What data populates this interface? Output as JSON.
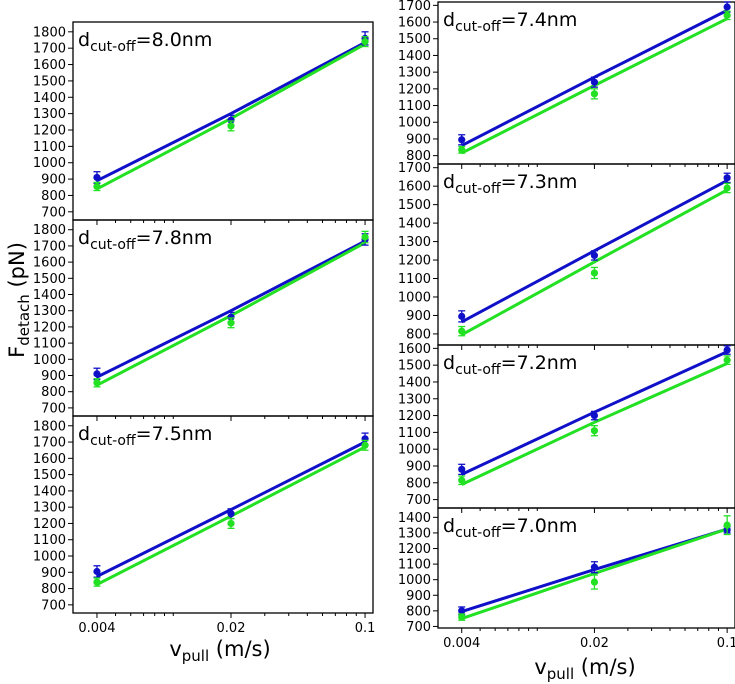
{
  "figure": {
    "ylabel_main": "F",
    "ylabel_sub": "detach",
    "ylabel_unit": " (pN)",
    "xlabel_main": "v",
    "xlabel_sub": "pull",
    "xlabel_unit": " (m/s)"
  },
  "chart_data": [
    {
      "type": "scatter",
      "label_main": "d",
      "label_sub": "cut-off",
      "label_value": "=8.0nm",
      "x": [
        0.004,
        0.02,
        0.1
      ],
      "xscale": "log",
      "xlim": [
        0.003,
        0.11
      ],
      "ylim": [
        650,
        1860
      ],
      "yticks": [
        700,
        800,
        900,
        1000,
        1100,
        1200,
        1300,
        1400,
        1500,
        1600,
        1700,
        1800
      ],
      "xticklabels_shown": false,
      "series": [
        {
          "color": "#1010c8",
          "points": [
            910,
            1260,
            1760
          ],
          "errors": [
            35,
            30,
            40
          ],
          "fit": [
            890,
            1300,
            1735
          ]
        },
        {
          "color": "#22e022",
          "points": [
            855,
            1225,
            1740
          ],
          "errors": [
            25,
            30,
            30
          ],
          "fit": [
            840,
            1270,
            1725
          ]
        }
      ]
    },
    {
      "type": "scatter",
      "label_main": "d",
      "label_sub": "cut-off",
      "label_value": "=7.8nm",
      "x": [
        0.004,
        0.02,
        0.1
      ],
      "xscale": "log",
      "xlim": [
        0.003,
        0.11
      ],
      "ylim": [
        650,
        1860
      ],
      "yticks": [
        700,
        800,
        900,
        1000,
        1100,
        1200,
        1300,
        1400,
        1500,
        1600,
        1700,
        1800
      ],
      "xticklabels_shown": false,
      "series": [
        {
          "color": "#1010c8",
          "points": [
            910,
            1260,
            1740
          ],
          "errors": [
            35,
            30,
            35
          ],
          "fit": [
            890,
            1300,
            1730
          ]
        },
        {
          "color": "#22e022",
          "points": [
            855,
            1225,
            1755
          ],
          "errors": [
            25,
            30,
            35
          ],
          "fit": [
            840,
            1270,
            1720
          ]
        }
      ]
    },
    {
      "type": "scatter",
      "label_main": "d",
      "label_sub": "cut-off",
      "label_value": "=7.5nm",
      "x": [
        0.004,
        0.02,
        0.1
      ],
      "xscale": "log",
      "xlim": [
        0.003,
        0.11
      ],
      "ylim": [
        650,
        1860
      ],
      "yticks": [
        700,
        800,
        900,
        1000,
        1100,
        1200,
        1300,
        1400,
        1500,
        1600,
        1700,
        1800
      ],
      "xticks": [
        0.004,
        0.02,
        0.1
      ],
      "xticklabels": [
        "0.004",
        "0.02",
        "0.1"
      ],
      "xticklabels_shown": true,
      "series": [
        {
          "color": "#1010c8",
          "points": [
            905,
            1260,
            1720
          ],
          "errors": [
            35,
            30,
            35
          ],
          "fit": [
            875,
            1285,
            1700
          ]
        },
        {
          "color": "#22e022",
          "points": [
            840,
            1200,
            1680
          ],
          "errors": [
            25,
            30,
            30
          ],
          "fit": [
            825,
            1245,
            1670
          ]
        }
      ]
    },
    {
      "type": "scatter",
      "label_main": "d",
      "label_sub": "cut-off",
      "label_value": "=7.4nm",
      "x": [
        0.004,
        0.02,
        0.1
      ],
      "xscale": "log",
      "xlim": [
        0.003,
        0.11
      ],
      "ylim": [
        750,
        1720
      ],
      "yticks": [
        800,
        900,
        1000,
        1100,
        1200,
        1300,
        1400,
        1500,
        1600,
        1700
      ],
      "xticklabels_shown": false,
      "series": [
        {
          "color": "#1010c8",
          "points": [
            895,
            1240,
            1690
          ],
          "errors": [
            30,
            30,
            30
          ],
          "fit": [
            860,
            1270,
            1670
          ]
        },
        {
          "color": "#22e022",
          "points": [
            835,
            1170,
            1640
          ],
          "errors": [
            20,
            30,
            25
          ],
          "fit": [
            815,
            1220,
            1620
          ]
        }
      ]
    },
    {
      "type": "scatter",
      "label_main": "d",
      "label_sub": "cut-off",
      "label_value": "=7.3nm",
      "x": [
        0.004,
        0.02,
        0.1
      ],
      "xscale": "log",
      "xlim": [
        0.003,
        0.11
      ],
      "ylim": [
        740,
        1720
      ],
      "yticks": [
        800,
        900,
        1000,
        1100,
        1200,
        1300,
        1400,
        1500,
        1600,
        1700
      ],
      "xticklabels_shown": false,
      "series": [
        {
          "color": "#1010c8",
          "points": [
            895,
            1225,
            1645
          ],
          "errors": [
            30,
            25,
            25
          ],
          "fit": [
            865,
            1250,
            1630
          ]
        },
        {
          "color": "#22e022",
          "points": [
            815,
            1130,
            1590
          ],
          "errors": [
            25,
            30,
            25
          ],
          "fit": [
            795,
            1190,
            1580
          ]
        }
      ]
    },
    {
      "type": "scatter",
      "label_main": "d",
      "label_sub": "cut-off",
      "label_value": "=7.2nm",
      "x": [
        0.004,
        0.02,
        0.1
      ],
      "xscale": "log",
      "xlim": [
        0.003,
        0.11
      ],
      "ylim": [
        650,
        1620
      ],
      "yticks": [
        700,
        800,
        900,
        1000,
        1100,
        1200,
        1300,
        1400,
        1500,
        1600
      ],
      "xticklabels_shown": false,
      "series": [
        {
          "color": "#1010c8",
          "points": [
            880,
            1200,
            1590
          ],
          "errors": [
            30,
            25,
            25
          ],
          "fit": [
            850,
            1220,
            1580
          ]
        },
        {
          "color": "#22e022",
          "points": [
            815,
            1110,
            1530
          ],
          "errors": [
            25,
            30,
            25
          ],
          "fit": [
            790,
            1160,
            1510
          ]
        }
      ]
    },
    {
      "type": "scatter",
      "label_main": "d",
      "label_sub": "cut-off",
      "label_value": "=7.0nm",
      "x": [
        0.004,
        0.02,
        0.1
      ],
      "xscale": "log",
      "xlim": [
        0.003,
        0.11
      ],
      "ylim": [
        690,
        1460
      ],
      "yticks": [
        700,
        800,
        900,
        1000,
        1100,
        1200,
        1300,
        1400
      ],
      "xticks": [
        0.004,
        0.02,
        0.1
      ],
      "xticklabels": [
        "0.004",
        "0.02",
        "0.1"
      ],
      "xticklabels_shown": true,
      "series": [
        {
          "color": "#1010c8",
          "points": [
            800,
            1080,
            1320
          ],
          "errors": [
            25,
            35,
            20
          ],
          "fit": [
            795,
            1065,
            1325
          ]
        },
        {
          "color": "#22e022",
          "points": [
            760,
            985,
            1350
          ],
          "errors": [
            20,
            45,
            60
          ],
          "fit": [
            750,
            1040,
            1325
          ]
        }
      ]
    }
  ]
}
